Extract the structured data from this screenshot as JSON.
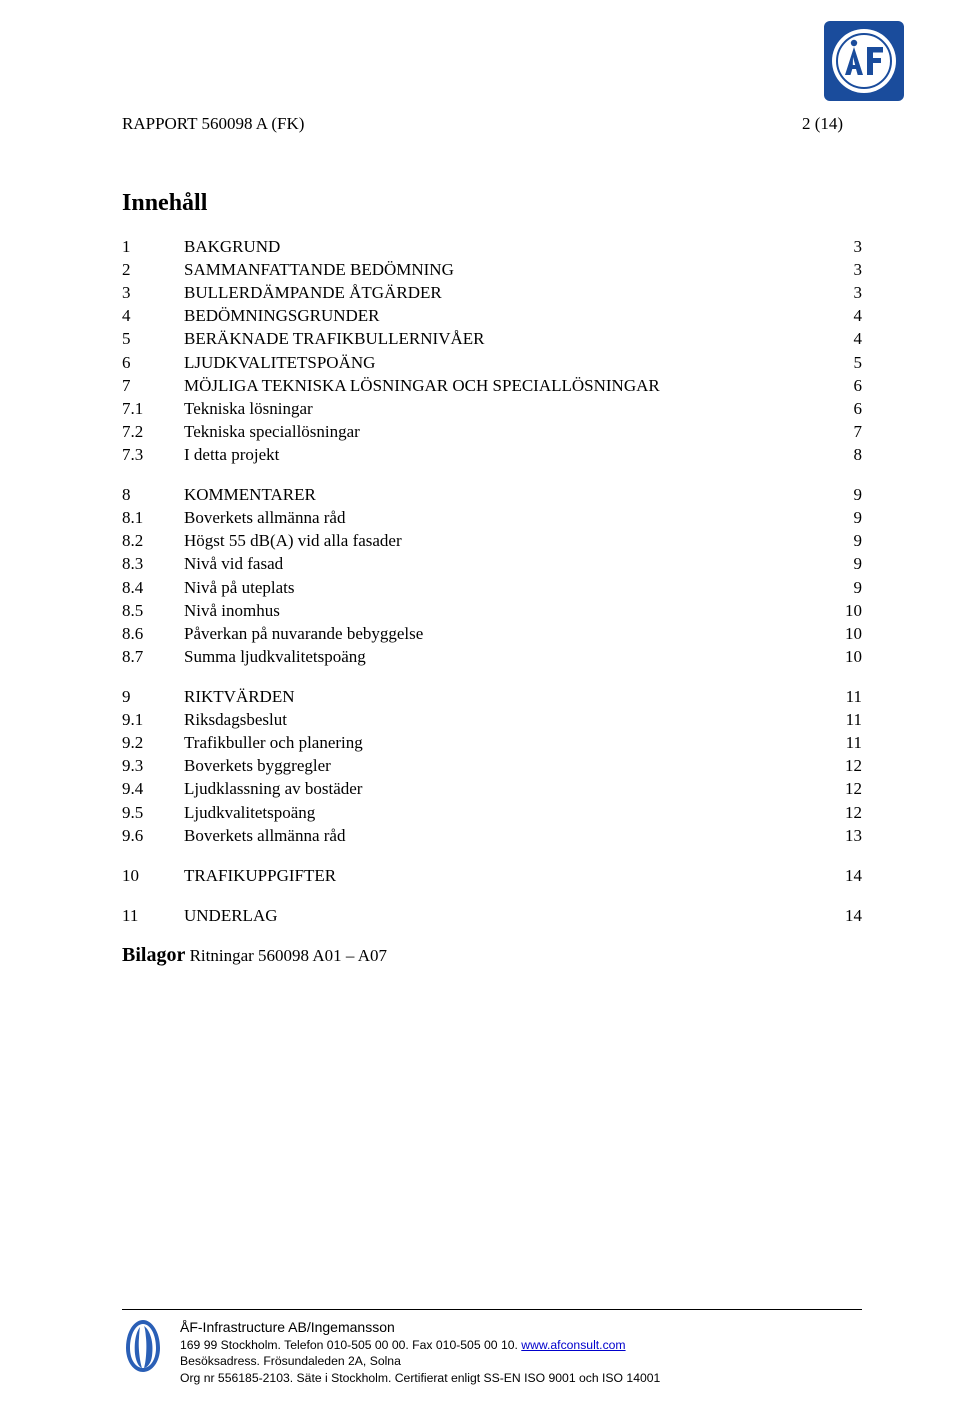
{
  "header": {
    "report_line": "RAPPORT 560098 A (FK)",
    "page_indicator": "2 (14)"
  },
  "toc": {
    "title": "Innehåll",
    "blocks": [
      [
        {
          "n": "1",
          "label": "BAKGRUND",
          "p": "3"
        },
        {
          "n": "2",
          "label": "SAMMANFATTANDE BEDÖMNING",
          "p": "3"
        },
        {
          "n": "3",
          "label": "BULLERDÄMPANDE ÅTGÄRDER",
          "p": "3"
        },
        {
          "n": "4",
          "label": "BEDÖMNINGSGRUNDER",
          "p": "4"
        },
        {
          "n": "5",
          "label": "BERÄKNADE TRAFIKBULLERNIVÅER",
          "p": "4"
        },
        {
          "n": "6",
          "label": "LJUDKVALITETSPOÄNG",
          "p": "5"
        },
        {
          "n": "7",
          "label": "MÖJLIGA TEKNISKA LÖSNINGAR OCH SPECIALLÖSNINGAR",
          "p": "6"
        },
        {
          "n": "7.1",
          "label": "Tekniska lösningar",
          "p": "6"
        },
        {
          "n": "7.2",
          "label": "Tekniska speciallösningar",
          "p": "7"
        },
        {
          "n": "7.3",
          "label": "I detta projekt",
          "p": "8"
        }
      ],
      [
        {
          "n": "8",
          "label": "KOMMENTARER",
          "p": "9"
        },
        {
          "n": "8.1",
          "label": "Boverkets allmänna råd",
          "p": "9"
        },
        {
          "n": "8.2",
          "label": "Högst 55 dB(A) vid alla fasader",
          "p": "9"
        },
        {
          "n": "8.3",
          "label": "Nivå vid fasad",
          "p": "9"
        },
        {
          "n": "8.4",
          "label": "Nivå på uteplats",
          "p": "9"
        },
        {
          "n": "8.5",
          "label": "Nivå inomhus",
          "p": "10"
        },
        {
          "n": "8.6",
          "label": "Påverkan på nuvarande bebyggelse",
          "p": "10"
        },
        {
          "n": "8.7",
          "label": "Summa ljudkvalitetspoäng",
          "p": "10"
        }
      ],
      [
        {
          "n": "9",
          "label": "RIKTVÄRDEN",
          "p": "11"
        },
        {
          "n": "9.1",
          "label": "Riksdagsbeslut",
          "p": "11"
        },
        {
          "n": "9.2",
          "label": "Trafikbuller och planering",
          "p": "11"
        },
        {
          "n": "9.3",
          "label": "Boverkets byggregler",
          "p": "12"
        },
        {
          "n": "9.4",
          "label": "Ljudklassning av bostäder",
          "p": "12"
        },
        {
          "n": "9.5",
          "label": "Ljudkvalitetspoäng",
          "p": "12"
        },
        {
          "n": "9.6",
          "label": "Boverkets allmänna råd",
          "p": "13"
        }
      ],
      [
        {
          "n": "10",
          "label": "TRAFIKUPPGIFTER",
          "p": "14"
        }
      ],
      [
        {
          "n": "11",
          "label": "UNDERLAG",
          "p": "14"
        }
      ]
    ],
    "bilagor_label": "Bilagor",
    "bilagor_text": "Ritningar 560098 A01 – A07"
  },
  "footer": {
    "company": "ÅF-Infrastructure AB/Ingemansson",
    "line1_a": "169 99 Stockholm. Telefon 010-505 00 00. Fax 010-505 00 10. ",
    "link": "www.afconsult.com",
    "line2": "Besöksadress. Frösundaleden 2A, Solna",
    "line3": "Org nr 556185-2103. Säte i Stockholm. Certifierat enligt SS-EN ISO 9001 och ISO 14001"
  },
  "colors": {
    "logo_blue": "#1a4c9c",
    "shell_blue": "#2a5fb6",
    "link": "#0000cc"
  }
}
